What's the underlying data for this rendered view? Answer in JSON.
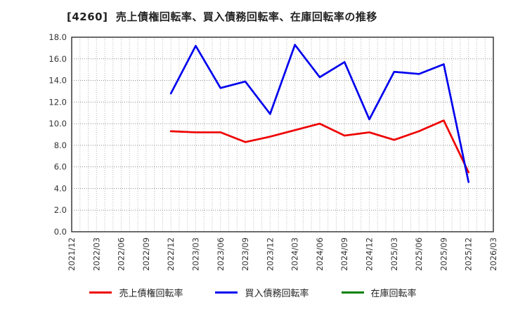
{
  "chart_data": {
    "type": "line",
    "title": "[4260]  売上債権回転率、買入債務回転率、在庫回転率の推移",
    "x_tick_labels": [
      "2021/12",
      "2022/03",
      "2022/06",
      "2022/09",
      "2022/12",
      "2023/03",
      "2023/06",
      "2023/09",
      "2023/12",
      "2024/03",
      "2024/06",
      "2024/09",
      "2024/12",
      "2025/03",
      "2025/06",
      "2025/09",
      "2025/12",
      "2026/03"
    ],
    "categories": [
      "2022/12",
      "2023/03",
      "2023/06",
      "2023/09",
      "2023/12",
      "2024/03",
      "2024/06",
      "2024/09",
      "2024/12",
      "2025/03",
      "2025/06",
      "2025/09",
      "2025/12"
    ],
    "series": [
      {
        "name": "売上債権回転率",
        "color": "#ee0000",
        "values": [
          9.3,
          9.2,
          9.2,
          8.3,
          8.8,
          9.4,
          10.0,
          8.9,
          9.2,
          8.5,
          9.3,
          10.3,
          5.5
        ]
      },
      {
        "name": "買入債務回転率",
        "color": "#0000ee",
        "values": [
          12.8,
          17.2,
          13.3,
          13.9,
          10.9,
          17.3,
          14.3,
          15.7,
          10.4,
          14.8,
          14.6,
          15.5,
          4.6
        ]
      },
      {
        "name": "在庫回転率",
        "color": "#008000",
        "values": []
      }
    ],
    "ylim": [
      0,
      18
    ],
    "ytick_step": 2,
    "ytick_decimals": 1,
    "grid": true,
    "legend_position": "bottom",
    "xlabel": "",
    "ylabel": ""
  },
  "colors": {
    "minor_grid": "#b8b8b8",
    "major_grid": "#8c8c8c",
    "axis_border": "#3a3a3a",
    "tick_label": "#333333"
  }
}
